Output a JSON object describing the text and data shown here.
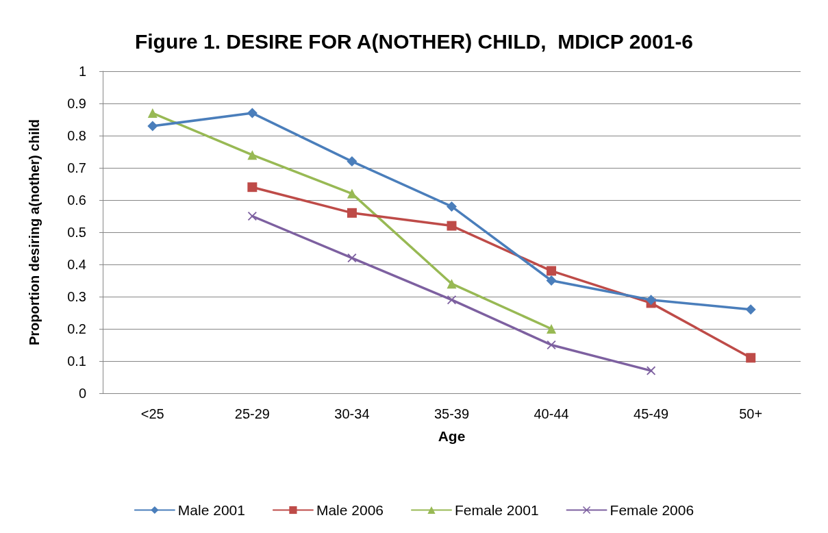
{
  "chart_data": {
    "type": "line",
    "title": "Figure 1. DESIRE FOR A(NOTHER) CHILD,  MDICP 2001-6",
    "xlabel": "Age",
    "ylabel": "Proportion desiring a(nother) child",
    "categories": [
      "<25",
      "25-29",
      "30-34",
      "35-39",
      "40-44",
      "45-49",
      "50+"
    ],
    "series": [
      {
        "name": "Male 2001",
        "color": "#4a7ebb",
        "marker": "diamond",
        "values": [
          0.83,
          0.87,
          0.72,
          0.58,
          0.35,
          0.29,
          0.26
        ]
      },
      {
        "name": "Male 2006",
        "color": "#be4b48",
        "marker": "square",
        "values": [
          null,
          0.64,
          0.56,
          0.52,
          0.38,
          0.28,
          0.11
        ]
      },
      {
        "name": "Female 2001",
        "color": "#98b954",
        "marker": "triangle",
        "values": [
          0.87,
          0.74,
          0.62,
          0.34,
          0.2,
          null,
          null
        ]
      },
      {
        "name": "Female 2006",
        "color": "#7d60a0",
        "marker": "cross",
        "values": [
          null,
          0.55,
          0.42,
          0.29,
          0.15,
          0.07,
          null
        ]
      }
    ],
    "ylim": [
      0,
      1
    ],
    "yticks": [
      0,
      0.1,
      0.2,
      0.3,
      0.4,
      0.5,
      0.6,
      0.7,
      0.8,
      0.9,
      1
    ],
    "grid": "y",
    "legend": "bottom",
    "line_style": "solid"
  }
}
